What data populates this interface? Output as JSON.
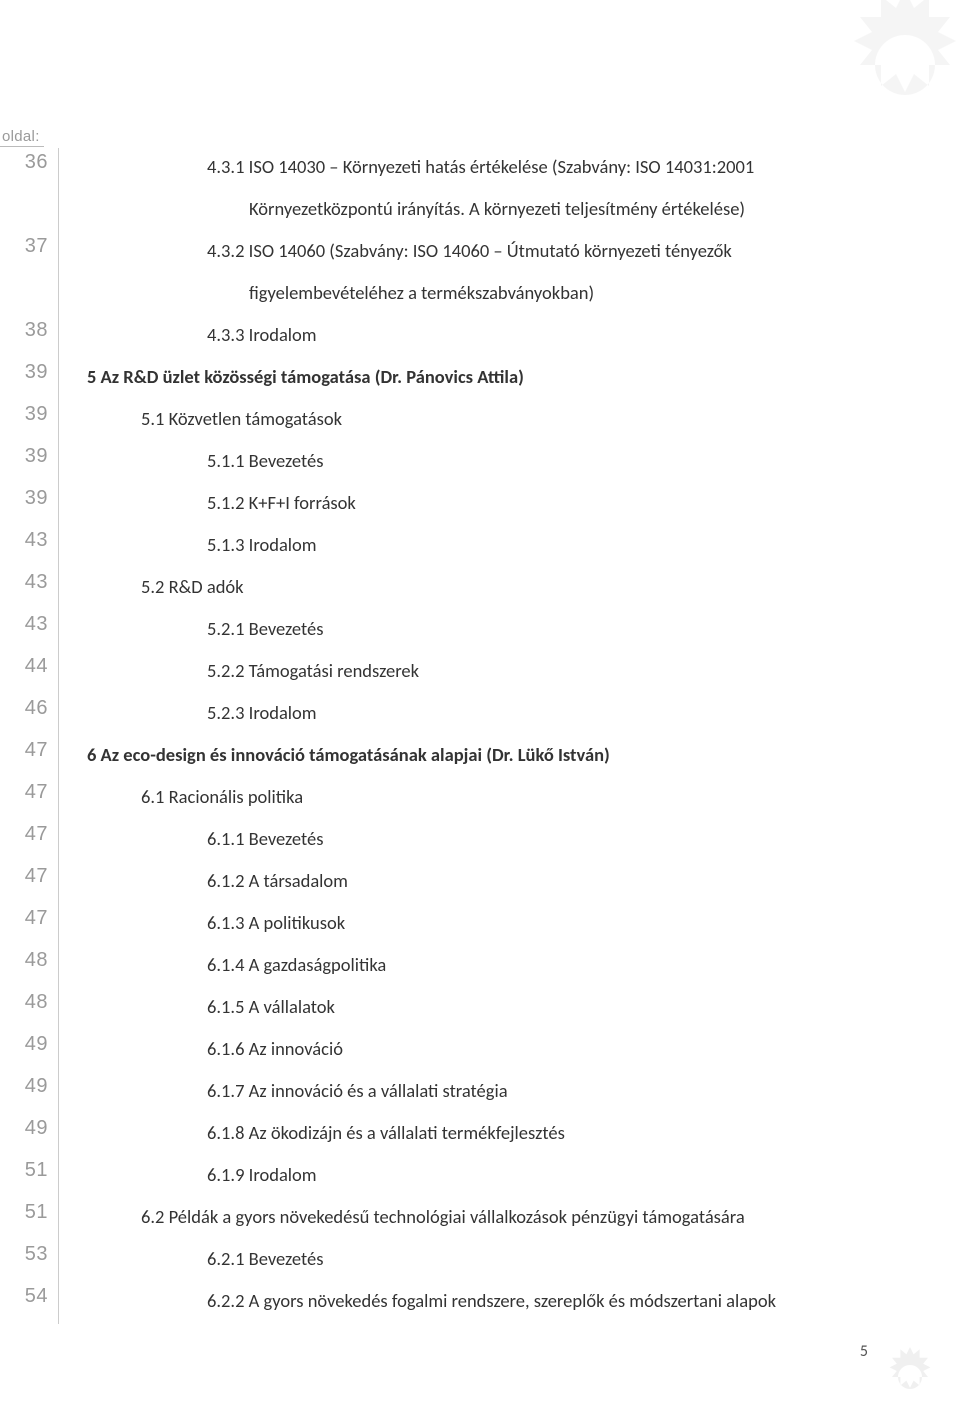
{
  "page_label": "oldal:",
  "page_number": "5",
  "toc": [
    {
      "page": "36",
      "level": 2,
      "text": "4.3.1 ISO 14030 – Környezeti hatás értékelése (Szabvány: ISO 14031:2001"
    },
    {
      "page": "",
      "level": "cont",
      "text": "Környezetközpontú irányítás. A környezeti teljesítmény értékelése)"
    },
    {
      "page": "37",
      "level": 2,
      "text": "4.3.2 ISO 14060 (Szabvány: ISO 14060 – Útmutató környezeti tényezők"
    },
    {
      "page": "",
      "level": "cont",
      "text": "figyelembevételéhez a termékszabványokban)"
    },
    {
      "page": "38",
      "level": 2,
      "text": "4.3.3 Irodalom"
    },
    {
      "page": "39",
      "level": 0,
      "text": "5 Az R&D üzlet közösségi támogatása (Dr. Pánovics Attila)"
    },
    {
      "page": "39",
      "level": 1,
      "text": "5.1 Közvetlen támogatások"
    },
    {
      "page": "39",
      "level": 2,
      "text": "5.1.1 Bevezetés"
    },
    {
      "page": "39",
      "level": 2,
      "text": "5.1.2  K+F+I források"
    },
    {
      "page": "43",
      "level": 2,
      "text": "5.1.3  Irodalom"
    },
    {
      "page": "43",
      "level": 1,
      "text": "5.2 R&D adók"
    },
    {
      "page": "43",
      "level": 2,
      "text": "5.2.1 Bevezetés"
    },
    {
      "page": "44",
      "level": 2,
      "text": "5.2.2 Támogatási rendszerek"
    },
    {
      "page": "46",
      "level": 2,
      "text": "5.2.3 Irodalom"
    },
    {
      "page": "47",
      "level": 0,
      "text": "6 Az eco-design és innováció támogatásának alapjai (Dr. Lükő István)"
    },
    {
      "page": "47",
      "level": 1,
      "text": "6.1 Racionális politika"
    },
    {
      "page": "47",
      "level": 2,
      "text": "6.1.1 Bevezetés"
    },
    {
      "page": "47",
      "level": 2,
      "text": "6.1.2 A társadalom"
    },
    {
      "page": "47",
      "level": 2,
      "text": "6.1.3 A politikusok"
    },
    {
      "page": "48",
      "level": 2,
      "text": "6.1.4 A gazdaságpolitika"
    },
    {
      "page": "48",
      "level": 2,
      "text": "6.1.5 A vállalatok"
    },
    {
      "page": "49",
      "level": 2,
      "text": "6.1.6 Az innováció"
    },
    {
      "page": "49",
      "level": 2,
      "text": "6.1.7 Az innováció és a vállalati stratégia"
    },
    {
      "page": "49",
      "level": 2,
      "text": "6.1.8 Az ökodizájn és a vállalati termékfejlesztés"
    },
    {
      "page": "51",
      "level": 2,
      "text": "6.1.9 Irodalom"
    },
    {
      "page": "51",
      "level": 1,
      "text": "6.2 Példák a gyors növekedésű technológiai vállalkozások pénzügyi támogatására"
    },
    {
      "page": "53",
      "level": 2,
      "text": "6.2.1 Bevezetés"
    },
    {
      "page": "54",
      "level": 2,
      "text": "6.2.2 A gyors növekedés fogalmi rendszere, szereplők és módszertani alapok"
    }
  ],
  "colors": {
    "page_num_col": "#9a9a9a",
    "text": "#333333",
    "separator": "#cccccc",
    "background": "#ffffff"
  },
  "fonts": {
    "body_size_pt": 14,
    "pagecol_size_pt": 15,
    "header_size_pt": 11
  }
}
